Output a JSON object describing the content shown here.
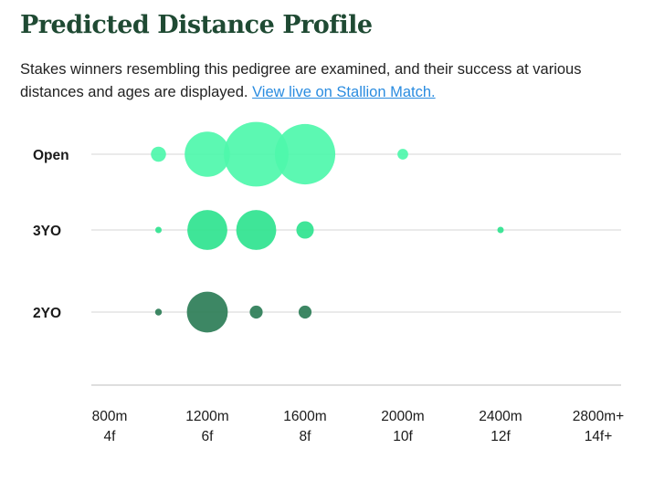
{
  "header": {
    "title": "Predicted Distance Profile",
    "description": "Stakes winners resembling this pedigree are examined, and their success at various distances and ages are displayed.",
    "link_label": "View live on Stallion Match."
  },
  "chart_data": {
    "type": "scatter",
    "subtype": "bubble",
    "title": "Predicted Distance Profile",
    "xlabel": "",
    "ylabel": "",
    "rows": [
      "Open",
      "3YO",
      "2YO"
    ],
    "x_ticks": [
      {
        "value": 800,
        "line1": "800m",
        "line2": "4f"
      },
      {
        "value": 1200,
        "line1": "1200m",
        "line2": "6f"
      },
      {
        "value": 1600,
        "line1": "1600m",
        "line2": "8f"
      },
      {
        "value": 2000,
        "line1": "2000m",
        "line2": "10f"
      },
      {
        "value": 2400,
        "line1": "2400m",
        "line2": "12f"
      },
      {
        "value": 2800,
        "line1": "2800m+",
        "line2": "14f+"
      }
    ],
    "xlim": [
      800,
      2800
    ],
    "series": [
      {
        "name": "Open",
        "color": "#4ef7ab",
        "points": [
          {
            "distance": 1000,
            "size": 3
          },
          {
            "distance": 1200,
            "size": 27
          },
          {
            "distance": 1400,
            "size": 55
          },
          {
            "distance": 1600,
            "size": 48
          },
          {
            "distance": 2000,
            "size": 1.5
          }
        ]
      },
      {
        "name": "3YO",
        "color": "#2fe38f",
        "points": [
          {
            "distance": 1000,
            "size": 0.5
          },
          {
            "distance": 1200,
            "size": 21
          },
          {
            "distance": 1400,
            "size": 21
          },
          {
            "distance": 1600,
            "size": 4
          },
          {
            "distance": 2400,
            "size": 0.5
          }
        ]
      },
      {
        "name": "2YO",
        "color": "#2d7d57",
        "points": [
          {
            "distance": 1000,
            "size": 0.6
          },
          {
            "distance": 1200,
            "size": 22
          },
          {
            "distance": 1400,
            "size": 2.2
          },
          {
            "distance": 1600,
            "size": 2.2
          }
        ]
      }
    ]
  }
}
